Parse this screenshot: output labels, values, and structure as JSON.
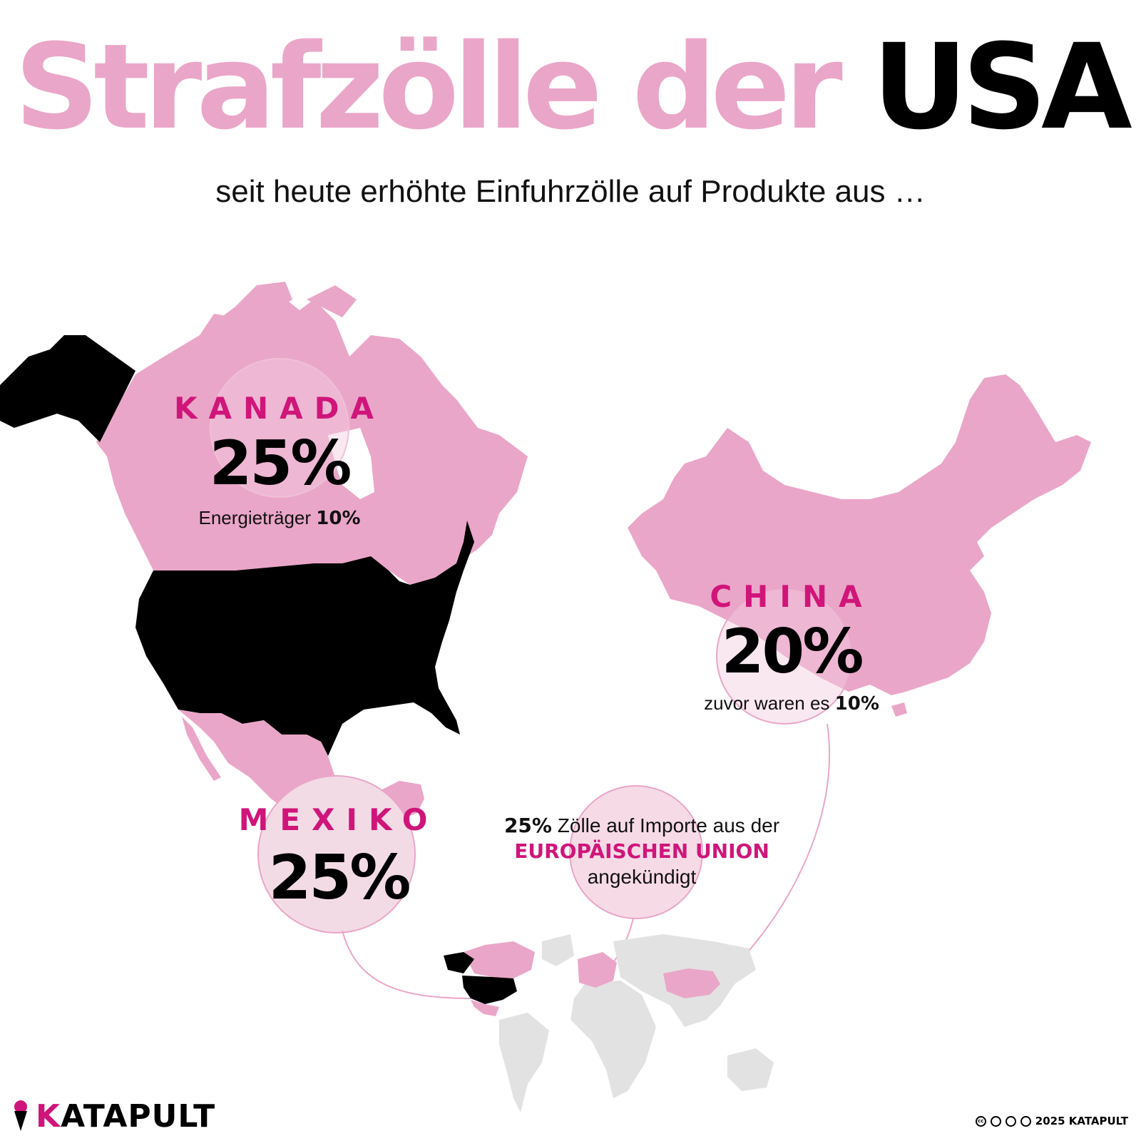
{
  "title": {
    "part1": "Strafzölle der",
    "part2": "USA"
  },
  "subtitle": "seit heute erhöhte Einfuhrzölle auf Produkte aus …",
  "countries": {
    "kanada": {
      "name": "KANADA",
      "tariff": "25%",
      "note_label": "Energieträger",
      "note_value": "10%"
    },
    "china": {
      "name": "CHINA",
      "tariff": "20%",
      "note_label": "zuvor waren es",
      "note_value": "10%"
    },
    "mexiko": {
      "name": "MEXIKO",
      "tariff": "25%"
    }
  },
  "eu_note": {
    "value": "25%",
    "text": "Zölle auf Importe aus der",
    "region": "EUROPÄISCHEN UNION",
    "status": "angekündigt"
  },
  "logo": {
    "first_letter": "K",
    "rest": "ATAPULT"
  },
  "credit": "2025 KATAPULT",
  "colors": {
    "pink": "#eaa6c8",
    "magenta": "#d0157a",
    "usa": "#000000",
    "other": "#e2e2e2"
  }
}
